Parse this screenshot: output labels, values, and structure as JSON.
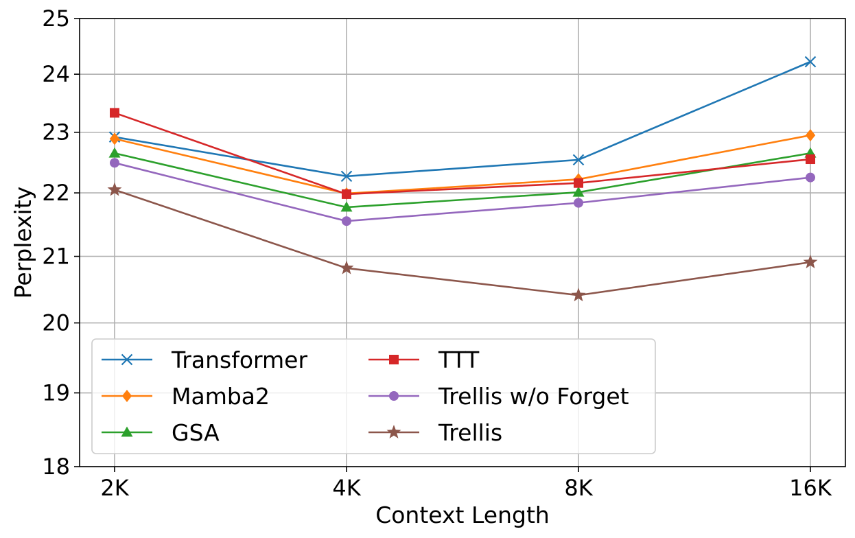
{
  "chart_data": {
    "type": "line",
    "title": "",
    "xlabel": "Context Length",
    "ylabel": "Perplexity",
    "categories": [
      "2K",
      "4K",
      "8K",
      "16K"
    ],
    "yscale": "log",
    "ylim": [
      18,
      25
    ],
    "yticks": [
      18,
      19,
      20,
      21,
      22,
      23,
      24,
      25
    ],
    "grid": true,
    "legend_position": "lower-left",
    "legend_columns": 2,
    "series": [
      {
        "name": "Transformer",
        "color": "#1f77b4",
        "marker": "x",
        "values": [
          22.92,
          22.27,
          22.54,
          24.22
        ]
      },
      {
        "name": "Mamba2",
        "color": "#ff7f0e",
        "marker": "diamond",
        "values": [
          22.89,
          21.99,
          22.22,
          22.95
        ]
      },
      {
        "name": "GSA",
        "color": "#2ca02c",
        "marker": "triangle",
        "values": [
          22.65,
          21.77,
          22.01,
          22.65
        ]
      },
      {
        "name": "TTT",
        "color": "#d62728",
        "marker": "square",
        "values": [
          23.33,
          21.98,
          22.16,
          22.55
        ]
      },
      {
        "name": "Trellis w/o Forget",
        "color": "#9467bd",
        "marker": "circle",
        "values": [
          22.49,
          21.55,
          21.84,
          22.25
        ]
      },
      {
        "name": "Trellis",
        "color": "#8c564b",
        "marker": "star",
        "values": [
          22.05,
          20.82,
          20.41,
          20.91
        ]
      }
    ]
  }
}
